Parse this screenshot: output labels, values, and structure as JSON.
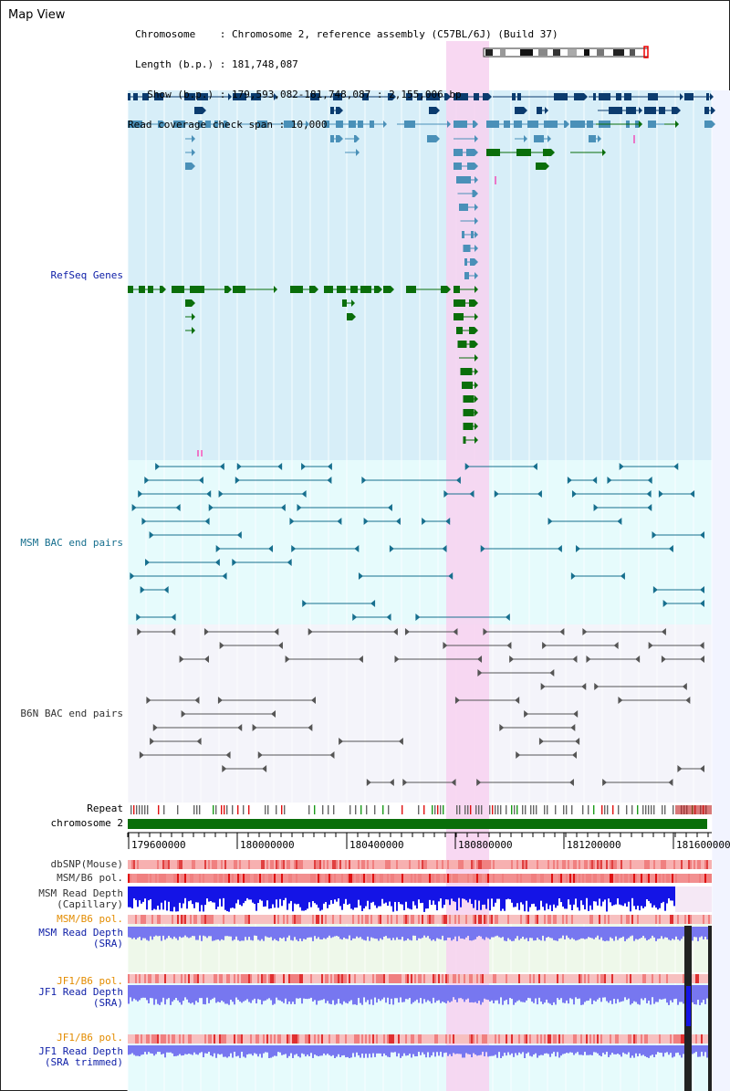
{
  "title": "Map View",
  "info": {
    "chromosome_label": "Chromosome    : Chromosome 2, reference assembly (C57BL/6J) (Build 37)",
    "length_label": "Length (b.p.) : 181,748,087",
    "show_label": "  Show (b.p.) : 179,593,082-181,748,087 : 2,155,006 bp",
    "coverage_label": "Read coverage check span : 10,000"
  },
  "tracks": {
    "refseq": "RefSeq Genes",
    "msm_bac": "MSM BAC end pairs",
    "b6n_bac": "B6N BAC end pairs",
    "repeat": "Repeat",
    "chromosome": "chromosome 2",
    "dbsnp": "dbSNP(Mouse)",
    "msm_b6_pol_1": "MSM/B6 pol.",
    "msm_read_depth_cap_1": "MSM Read Depth",
    "msm_read_depth_cap_2": "(Capillary)",
    "msm_b6_pol_2": "MSM/B6 pol.",
    "msm_read_depth_sra_1": "MSM Read Depth",
    "msm_read_depth_sra_2": "(SRA)",
    "jf1_b6_pol_1": "JF1/B6 pol.",
    "jf1_read_depth_sra_1": "JF1 Read Depth",
    "jf1_read_depth_sra_2": "(SRA)",
    "jf1_b6_pol_2": "JF1/B6 pol.",
    "jf1_read_depth_trim_1": "JF1 Read Depth",
    "jf1_read_depth_trim_2": "(SRA trimmed)"
  },
  "axis": {
    "ticks": [
      "179600000",
      "180000000",
      "180400000",
      "180800000",
      "181200000",
      "181600000"
    ]
  },
  "colors": {
    "highlight": "#f7d1f0",
    "refseq_bg": "#d7eef8",
    "bac_bg": "#e6fbfc",
    "b6n_bg": "#f4f4fa",
    "gene_dark": "#0b3b6e",
    "gene_mid": "#4a90b8",
    "gene_green": "#0a6e0a",
    "chromosome_bar": "#0a6e0a",
    "label_blue": "#1020a8",
    "label_teal": "#176f8e",
    "label_orange": "#e38c00",
    "depth_blue": "#1414e6",
    "depth_lavender": "#7777f0"
  }
}
